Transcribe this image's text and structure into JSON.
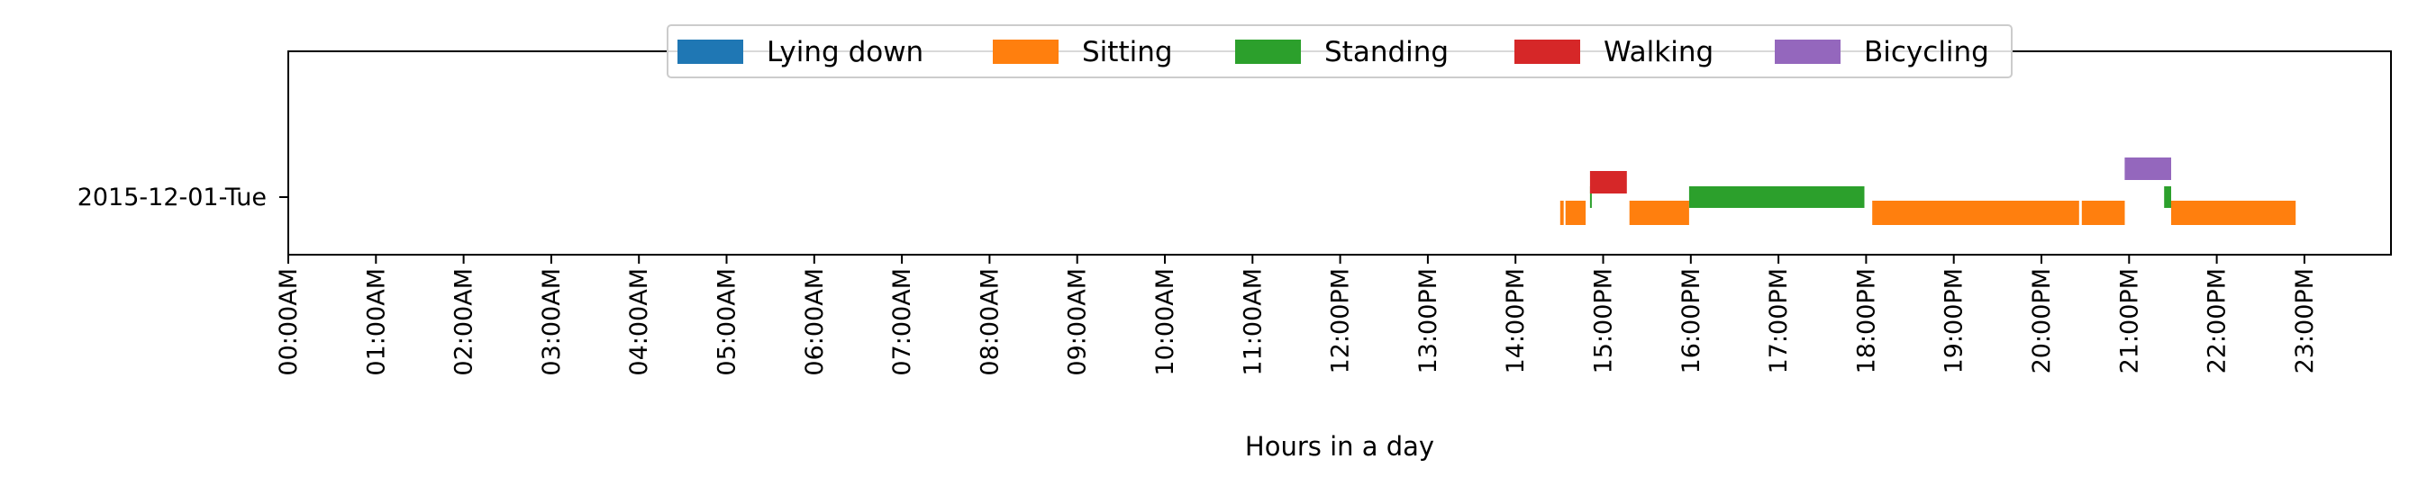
{
  "chart_data": {
    "type": "timeline",
    "xlabel": "Hours in a day",
    "xlim": [
      0,
      24
    ],
    "x_ticks": [
      "00:00AM",
      "01:00AM",
      "02:00AM",
      "03:00AM",
      "04:00AM",
      "05:00AM",
      "06:00AM",
      "07:00AM",
      "08:00AM",
      "09:00AM",
      "10:00AM",
      "11:00AM",
      "12:00PM",
      "13:00PM",
      "14:00PM",
      "15:00PM",
      "16:00PM",
      "17:00PM",
      "18:00PM",
      "19:00PM",
      "20:00PM",
      "21:00PM",
      "22:00PM",
      "23:00PM"
    ],
    "y_categories": [
      "2015-12-01-Tue"
    ],
    "legend": "top-center",
    "grid": false,
    "series": [
      {
        "name": "Lying down",
        "color": "#1f77b4",
        "segments": []
      },
      {
        "name": "Sitting",
        "color": "#ff7f0e",
        "segments": [
          [
            14.51,
            14.55
          ],
          [
            14.57,
            14.8
          ],
          [
            15.3,
            15.98
          ],
          [
            18.07,
            20.43
          ],
          [
            20.46,
            20.95
          ],
          [
            21.48,
            22.9
          ]
        ]
      },
      {
        "name": "Standing",
        "color": "#2ca02c",
        "segments": [
          [
            14.85,
            14.87
          ],
          [
            15.98,
            17.98
          ],
          [
            21.4,
            21.48
          ]
        ]
      },
      {
        "name": "Walking",
        "color": "#d62728",
        "segments": [
          [
            14.85,
            15.27
          ]
        ]
      },
      {
        "name": "Bicycling",
        "color": "#9467bd",
        "segments": [
          [
            20.95,
            21.48
          ]
        ]
      }
    ]
  }
}
